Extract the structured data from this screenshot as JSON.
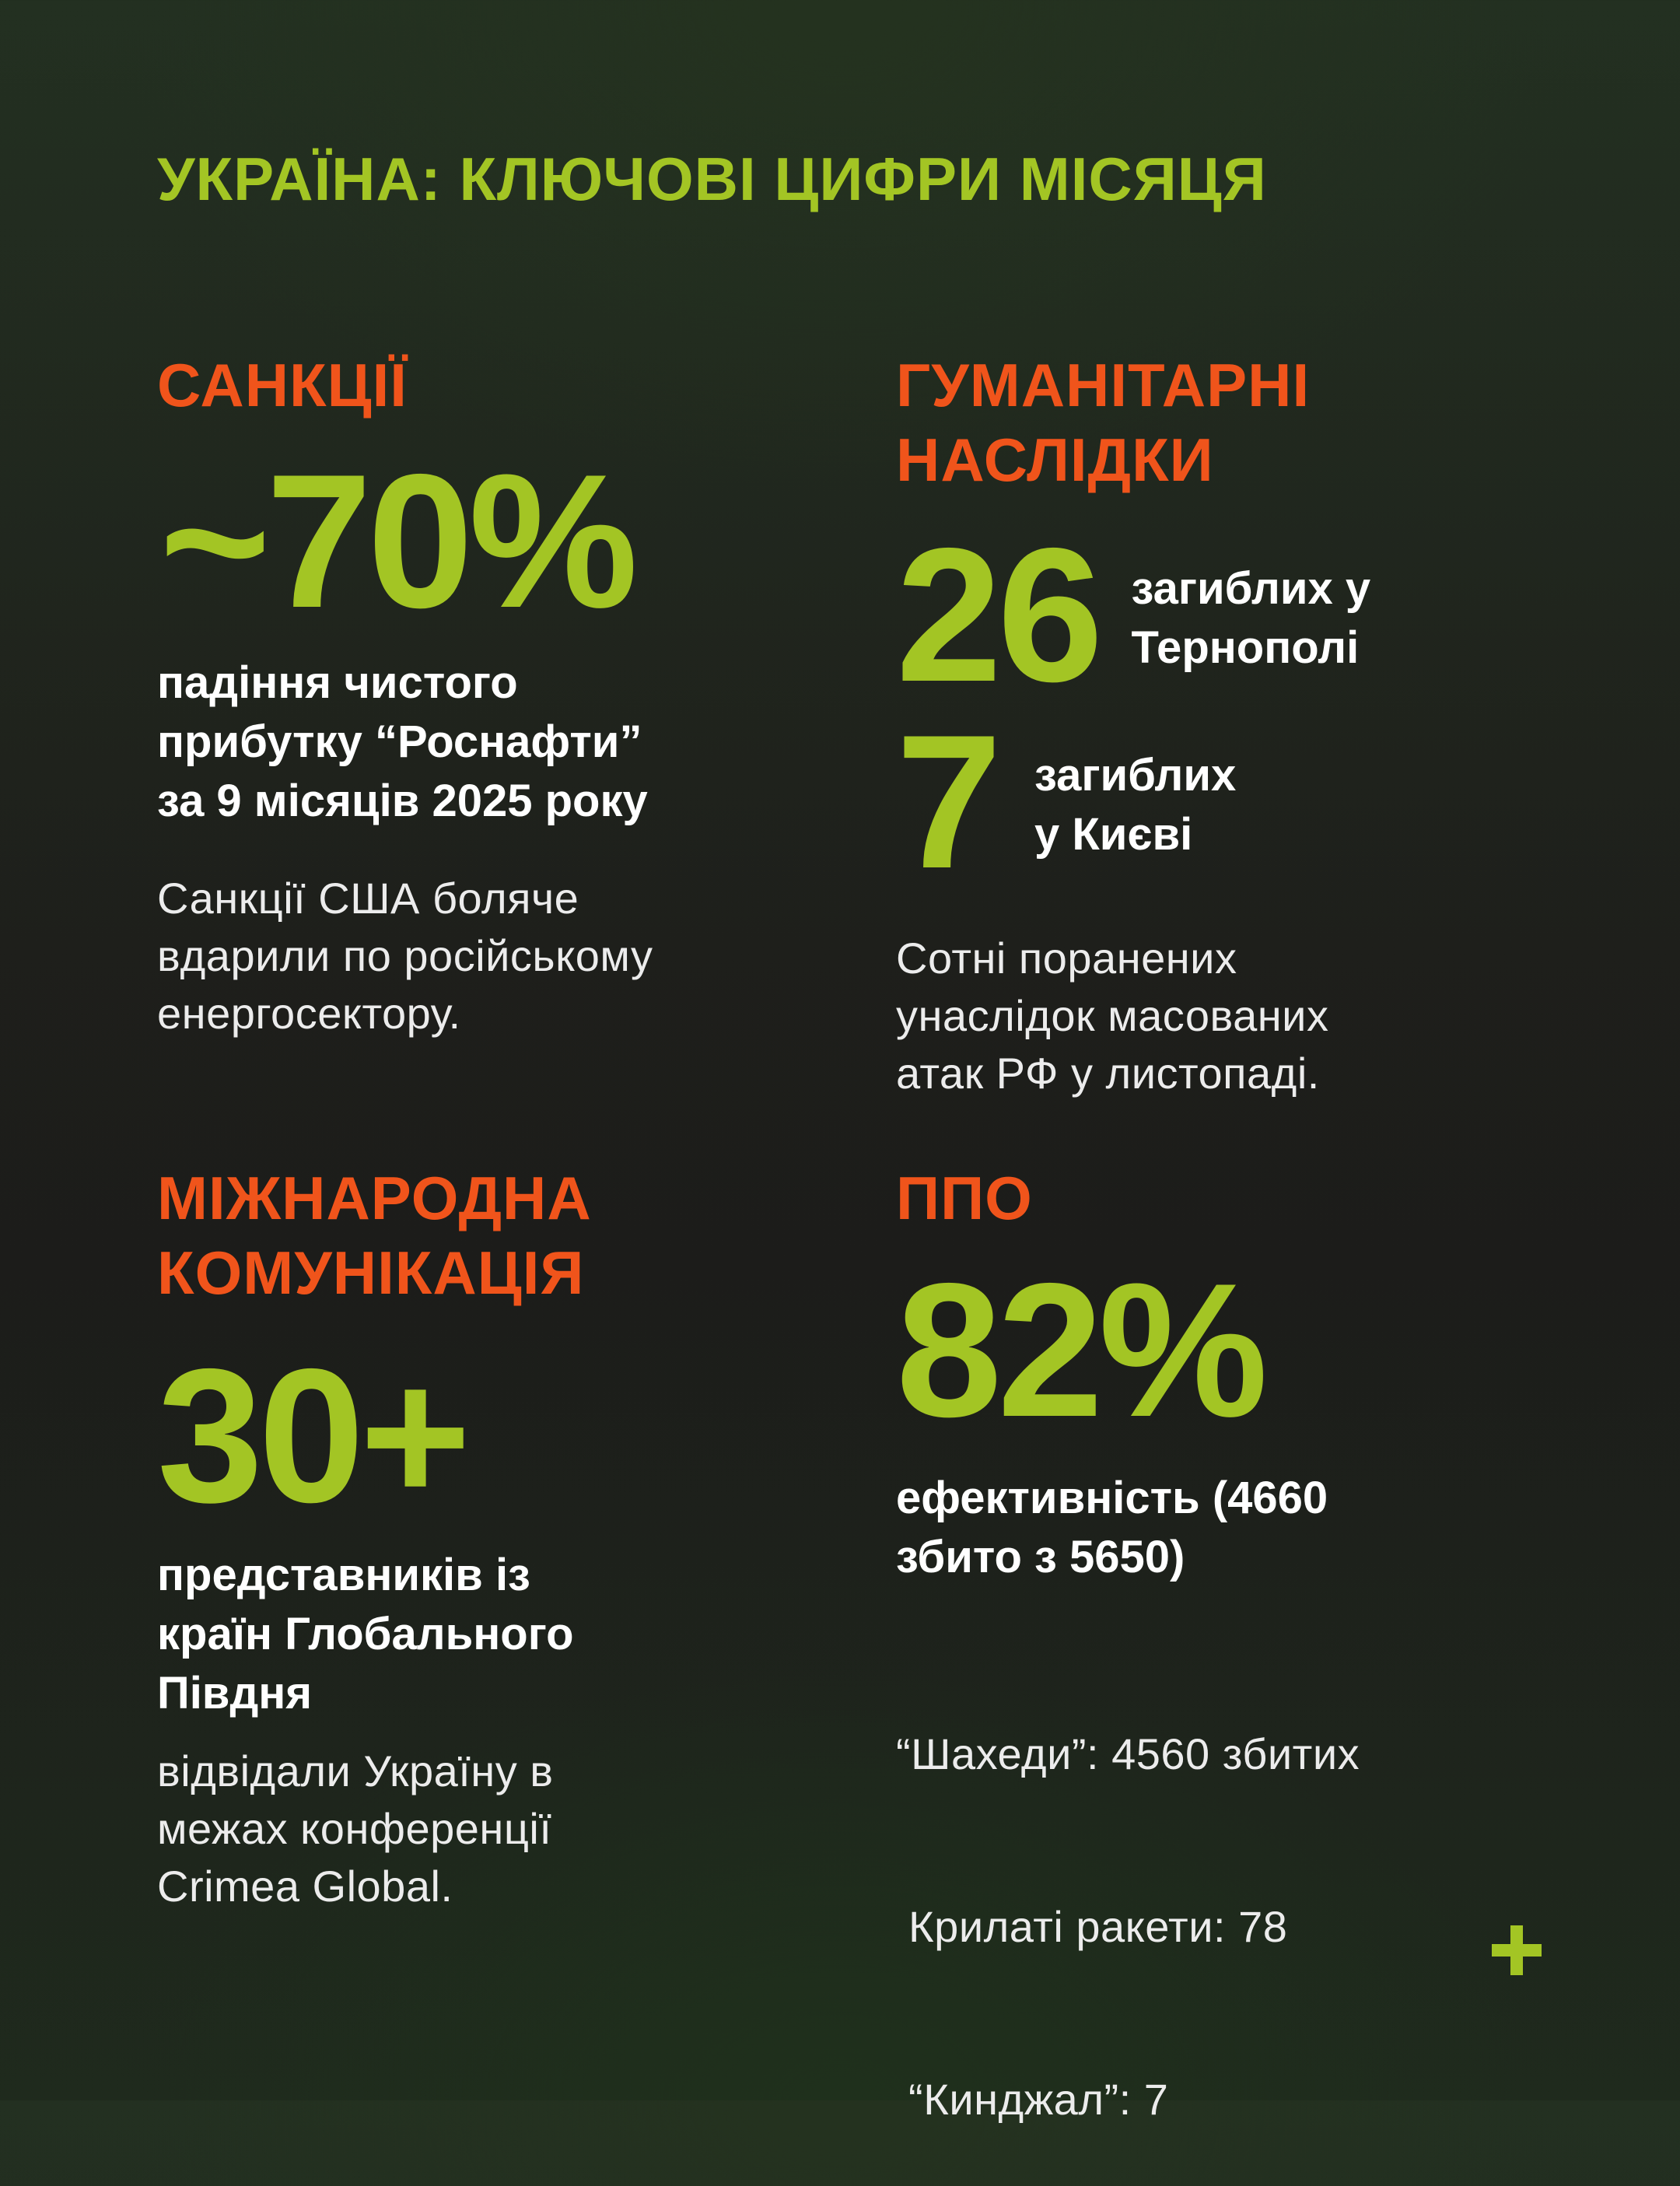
{
  "title": "УКРАЇНА: КЛЮЧОВІ ЦИФРИ МІСЯЦЯ",
  "sanctions": {
    "heading": "САНКЦІЇ",
    "figure": "~70%",
    "bold_lines": [
      "падіння чистого",
      "прибутку “Роснафти”",
      "за 9 місяців 2025 року"
    ],
    "light_lines": [
      "Санкції США боляче",
      "вдарили по російському",
      "енергосектору."
    ]
  },
  "humanitarian": {
    "heading_lines": [
      "ГУМАНІТАРНІ",
      "НАСЛІДКИ"
    ],
    "stats": [
      {
        "figure": "26",
        "label_lines": [
          "загиблих у",
          "Тернополі"
        ]
      },
      {
        "figure": "7",
        "label_lines": [
          "загиблих",
          "у Києві"
        ]
      }
    ],
    "light_lines": [
      "Сотні поранених",
      "унаслідок масованих",
      "атак РФ у листопаді."
    ]
  },
  "communication": {
    "heading_lines": [
      "МІЖНАРОДНА",
      "КОМУНІКАЦІЯ"
    ],
    "figure": "30+",
    "bold_lines": [
      "представників із",
      "країн Глобального",
      "Півдня"
    ],
    "light_lines": [
      "відвідали Україну в",
      "межах конференції",
      "Crimea Global."
    ]
  },
  "air_defense": {
    "heading": "ППО",
    "figure": "82%",
    "bold_lines": [
      "ефективність (4660",
      "збито з 5650)"
    ],
    "light_lines": [
      "“Шахеди”: 4560 збитих",
      " Крилаті ракети: 78",
      " “Кинджал”: 7"
    ]
  },
  "corner_icon": "plus-icon",
  "colors": {
    "accent_green": "#a3c524",
    "accent_orange": "#f0541b",
    "text_white": "#ffffff",
    "background": "#1e1f1b"
  }
}
